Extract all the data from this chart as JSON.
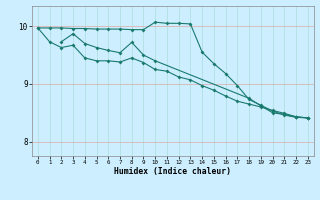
{
  "xlabel": "Humidex (Indice chaleur)",
  "bg_color": "#cceeff",
  "grid_color_v": "#aadddd",
  "grid_color_h": "#ddaaaa",
  "line_color": "#1a7a6e",
  "xlim": [
    -0.5,
    23.5
  ],
  "ylim": [
    7.75,
    10.35
  ],
  "yticks": [
    8,
    9,
    10
  ],
  "xticks": [
    0,
    1,
    2,
    3,
    4,
    5,
    6,
    7,
    8,
    9,
    10,
    11,
    12,
    13,
    14,
    15,
    16,
    17,
    18,
    19,
    20,
    21,
    22,
    23
  ],
  "line1_x": [
    0,
    1,
    2,
    3,
    4,
    5,
    6,
    7,
    8,
    9,
    10,
    11,
    12,
    13,
    14,
    15,
    16,
    17,
    18,
    19,
    20,
    21,
    22,
    23
  ],
  "line1_y": [
    9.97,
    9.97,
    9.97,
    9.96,
    9.96,
    9.95,
    9.95,
    9.95,
    9.94,
    9.94,
    10.07,
    10.05,
    10.05,
    10.04,
    9.55,
    9.35,
    9.18,
    8.97,
    8.73,
    8.63,
    8.53,
    8.46,
    8.42,
    8.41
  ],
  "line2_x": [
    2,
    3,
    4,
    5,
    6,
    7,
    8,
    9,
    10,
    18,
    19,
    20,
    21,
    22,
    23
  ],
  "line2_y": [
    9.73,
    9.87,
    9.7,
    9.63,
    9.58,
    9.54,
    9.72,
    9.5,
    9.4,
    8.75,
    8.62,
    8.5,
    8.47,
    8.43,
    8.41
  ],
  "line3_x": [
    0,
    1,
    2,
    3,
    4,
    5,
    6,
    7,
    8,
    9,
    10,
    11,
    12,
    13,
    14,
    15,
    16,
    17,
    18,
    19,
    20,
    21,
    22,
    23
  ],
  "line3_y": [
    9.97,
    9.73,
    9.63,
    9.67,
    9.45,
    9.4,
    9.4,
    9.38,
    9.45,
    9.37,
    9.25,
    9.22,
    9.12,
    9.07,
    8.97,
    8.89,
    8.79,
    8.7,
    8.65,
    8.6,
    8.54,
    8.49,
    8.43,
    8.41
  ]
}
